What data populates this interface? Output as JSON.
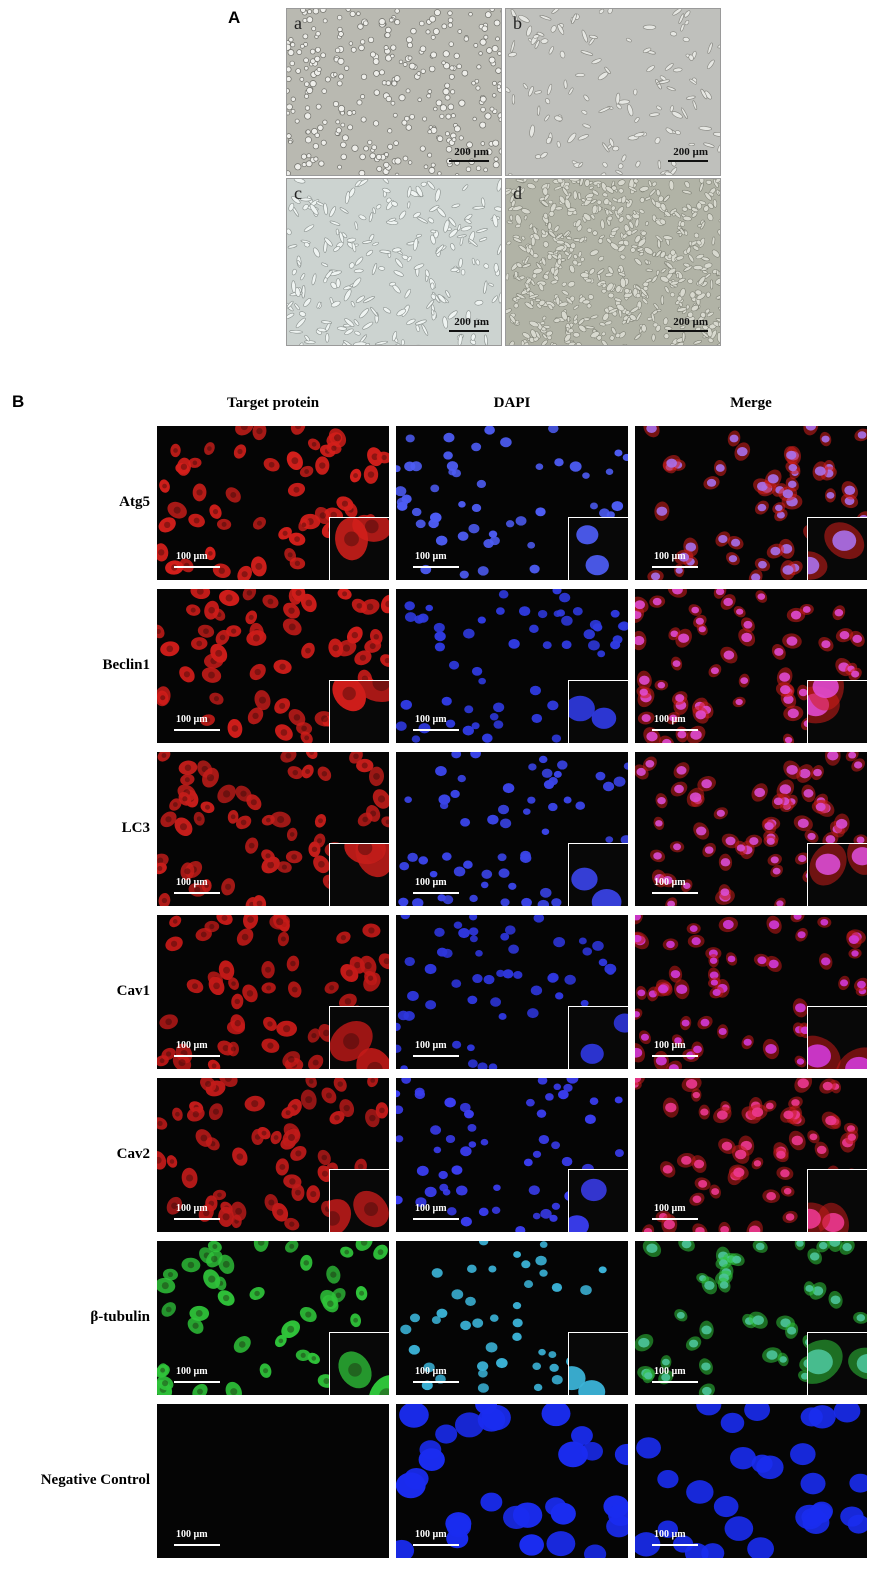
{
  "panel_a": {
    "letter": "A",
    "subpanels": [
      {
        "label": "a",
        "scale": "200 µm",
        "bg": "#b9b9b1",
        "cell": "#eeeeea",
        "edge": "#6f6f69",
        "density": 320,
        "shape": "round"
      },
      {
        "label": "b",
        "scale": "200 µm",
        "bg": "#bfc0bc",
        "cell": "#e6e7e3",
        "edge": "#85857f",
        "density": 130,
        "shape": "spindle"
      },
      {
        "label": "c",
        "scale": "200 µm",
        "bg": "#ccd3d0",
        "cell": "#eff4f2",
        "edge": "#8a918e",
        "density": 230,
        "shape": "spindle"
      },
      {
        "label": "d",
        "scale": "200 µm",
        "bg": "#b1b3a6",
        "cell": "#d8d9cf",
        "edge": "#77796d",
        "density": 600,
        "shape": "dense"
      }
    ]
  },
  "panel_b": {
    "letter": "B",
    "column_headers": [
      "Target protein",
      "DAPI",
      "Merge"
    ],
    "scale_label": "100 µm",
    "rows": [
      {
        "label": "Atg5",
        "target": "#d41f1b",
        "dapi": "#4d5cf4",
        "merge_nuc": "#a870ec",
        "density": 55
      },
      {
        "label": "Beclin1",
        "target": "#cf1d1a",
        "dapi": "#2f3ae0",
        "merge_nuc": "#e04ad0",
        "density": 60
      },
      {
        "label": "LC3",
        "target": "#c51d1a",
        "dapi": "#3a44e8",
        "merge_nuc": "#d94cd4",
        "density": 60
      },
      {
        "label": "Cav1",
        "target": "#c51a18",
        "dapi": "#2e36dc",
        "merge_nuc": "#d23ad8",
        "density": 55
      },
      {
        "label": "Cav2",
        "target": "#c21b1a",
        "dapi": "#3a3df0",
        "merge_nuc": "#ec3890",
        "density": 55
      },
      {
        "label": "β-tubulin",
        "target": "#2fc43a",
        "dapi": "#3bb2d6",
        "merge_nuc": "#4cc49a",
        "density": 45
      },
      {
        "label": "Negative Control",
        "target": "#0a0c0a",
        "dapi": "#1a2cf0",
        "merge_nuc": "#1a2cf0",
        "density": 30,
        "no_inset": true
      }
    ]
  }
}
